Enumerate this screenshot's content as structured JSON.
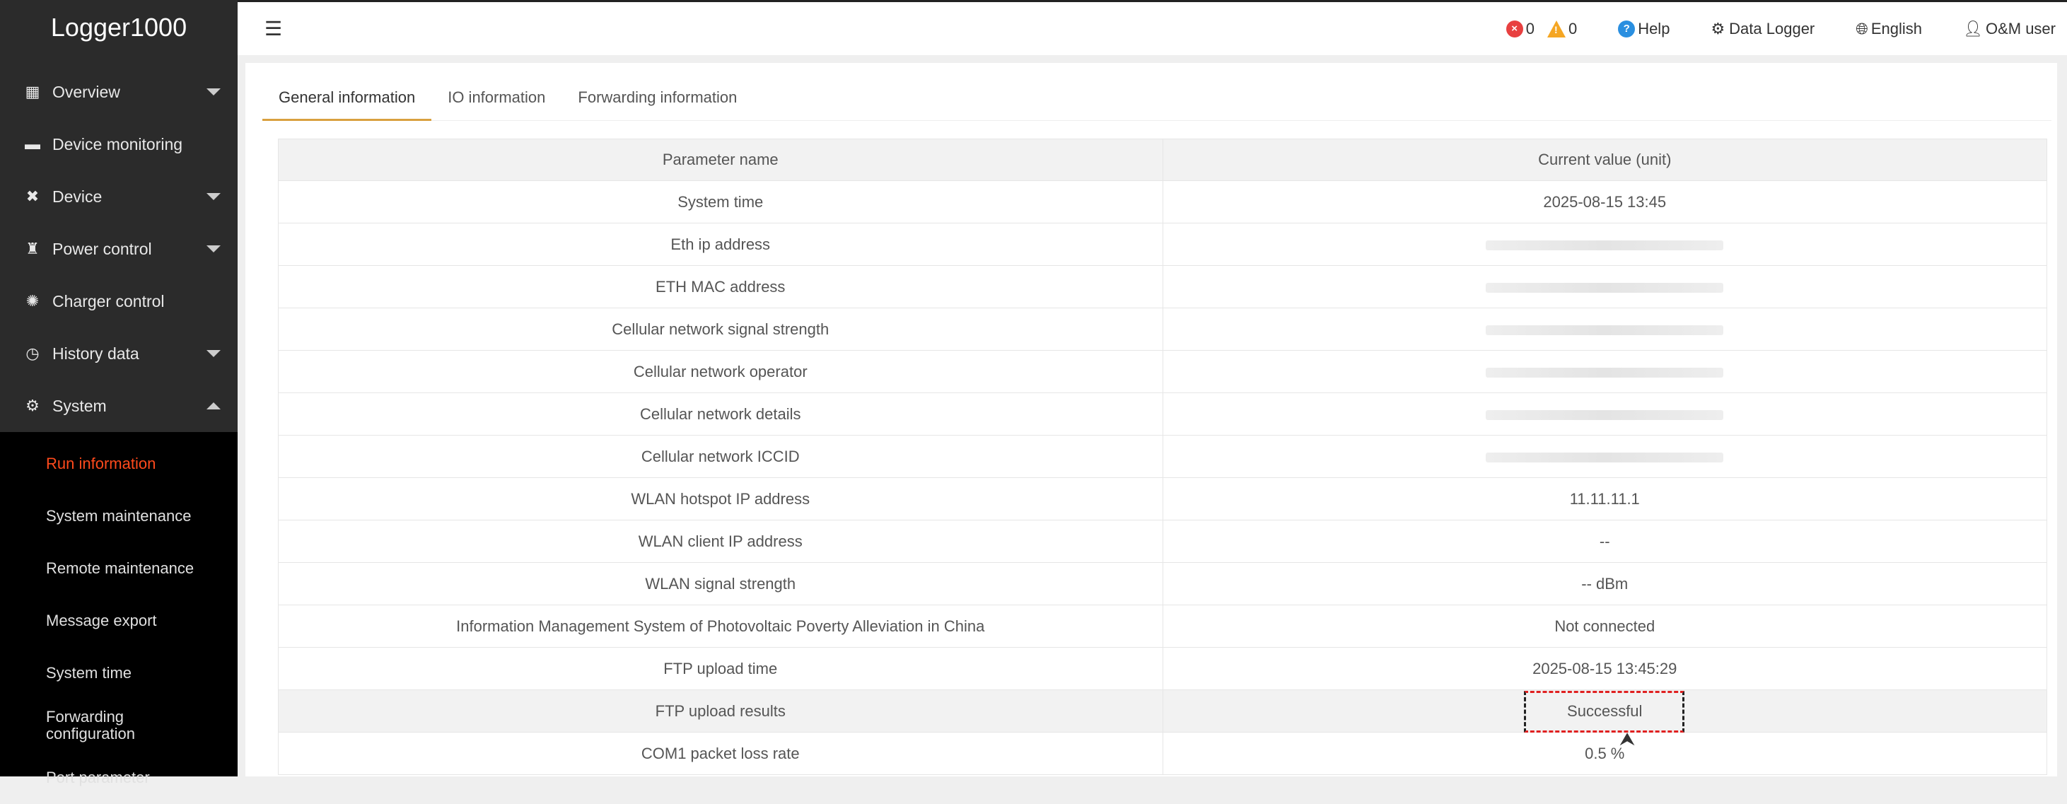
{
  "app": {
    "title": "Logger1000"
  },
  "sidebar": {
    "items": [
      {
        "label": "Overview",
        "icon": "grid-icon",
        "caret": "down"
      },
      {
        "label": "Device monitoring",
        "icon": "monitor-icon",
        "caret": ""
      },
      {
        "label": "Device",
        "icon": "tools-icon",
        "caret": "down"
      },
      {
        "label": "Power control",
        "icon": "tower-icon",
        "caret": "down"
      },
      {
        "label": "Charger control",
        "icon": "charger-icon",
        "caret": ""
      },
      {
        "label": "History data",
        "icon": "clock-icon",
        "caret": "down"
      },
      {
        "label": "System",
        "icon": "gear-icon",
        "caret": "up"
      }
    ],
    "sub_items": [
      "Run information",
      "System maintenance",
      "Remote maintenance",
      "Message export",
      "System time",
      "Forwarding configuration",
      "Port parameter"
    ],
    "active_sub": "Run information"
  },
  "header": {
    "errors": "0",
    "warnings": "0",
    "help": "Help",
    "device": "Data Logger",
    "language": "English",
    "user": "O&M user"
  },
  "tabs": [
    "General information",
    "IO information",
    "Forwarding information"
  ],
  "table": {
    "headers": [
      "Parameter name",
      "Current value (unit)"
    ],
    "rows": [
      [
        "System time",
        "2025-08-15 13:45"
      ],
      [
        "Eth ip address",
        ""
      ],
      [
        "ETH MAC address",
        ""
      ],
      [
        "Cellular network signal strength",
        ""
      ],
      [
        "Cellular network operator",
        ""
      ],
      [
        "Cellular network details",
        ""
      ],
      [
        "Cellular network ICCID",
        ""
      ],
      [
        "WLAN hotspot IP address",
        "11.11.11.1"
      ],
      [
        "WLAN client IP address",
        "--"
      ],
      [
        "WLAN signal strength",
        "-- dBm"
      ],
      [
        "Information Management System of Photovoltaic Poverty Alleviation in China",
        "Not connected"
      ],
      [
        "FTP upload time",
        "2025-08-15 13:45:29"
      ],
      [
        "FTP upload results",
        "Successful"
      ],
      [
        "COM1 packet loss rate",
        "0.5 %"
      ]
    ]
  },
  "colors": {
    "accent": "#ff4a1c",
    "tab_underline": "#d9a03f",
    "error": "#e84040",
    "warning": "#f5a623",
    "help": "#2a8fe0"
  }
}
